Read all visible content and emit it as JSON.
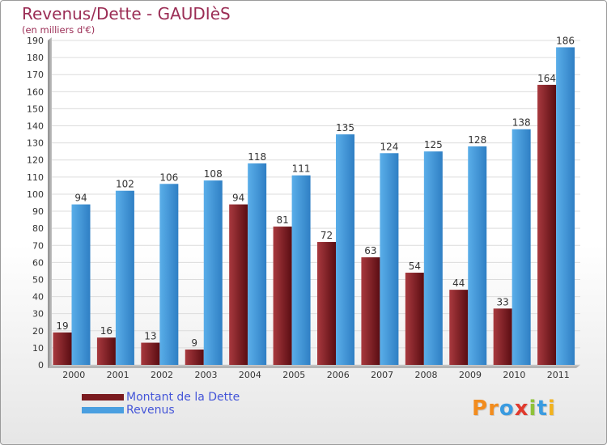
{
  "chart_data": {
    "type": "bar",
    "title": "Revenus/Dette - GAUDIèS",
    "subtitle": "(en milliers d'€)",
    "categories": [
      "2000",
      "2001",
      "2002",
      "2003",
      "2004",
      "2005",
      "2006",
      "2007",
      "2008",
      "2009",
      "2010",
      "2011"
    ],
    "series": [
      {
        "name": "Montant de la Dette",
        "color": "#7a1a1f",
        "values": [
          19,
          16,
          13,
          9,
          94,
          81,
          72,
          63,
          54,
          44,
          33,
          164
        ]
      },
      {
        "name": "Revenus",
        "color": "#4a9fe0",
        "values": [
          94,
          102,
          106,
          108,
          118,
          111,
          135,
          124,
          125,
          128,
          138,
          186
        ]
      }
    ],
    "ylim": [
      0,
      190
    ],
    "ytick_step": 10,
    "grid": true,
    "legend_position": "bottom-left"
  },
  "brand": {
    "letters": [
      "P",
      "r",
      "o",
      "x",
      "i",
      "t",
      "i"
    ],
    "colors": [
      "#f28c1e",
      "#f28c1e",
      "#3a9be0",
      "#e03a2e",
      "#8fc23a",
      "#3a9be0",
      "#f2b21e"
    ]
  }
}
